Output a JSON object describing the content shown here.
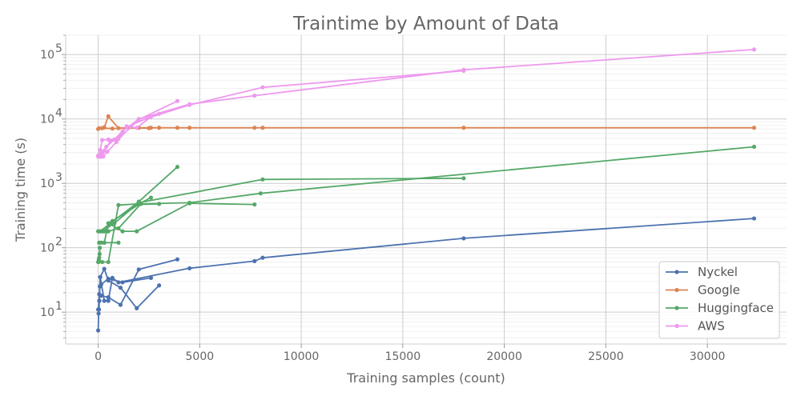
{
  "chart_data": {
    "type": "line",
    "title": "Traintime by Amount of Data",
    "xlabel": "Training samples (count)",
    "ylabel": "Training time (s)",
    "xlim": [
      -1600,
      33900
    ],
    "ylim": [
      3.2,
      200000
    ],
    "yscale": "log",
    "x_ticks": [
      0,
      5000,
      10000,
      15000,
      20000,
      25000,
      30000
    ],
    "x_tick_labels": [
      "0",
      "5000",
      "10000",
      "15000",
      "20000",
      "25000",
      "30000"
    ],
    "y_ticks": [
      10,
      100,
      1000,
      10000,
      100000
    ],
    "y_tick_labels": [
      "10",
      "10",
      "10",
      "10",
      "10"
    ],
    "y_tick_exponents": [
      "1",
      "2",
      "3",
      "4",
      "5"
    ],
    "grid": true,
    "legend_position": "bottom-right",
    "series": [
      {
        "name": "Nyckel",
        "color": "#4c72b0",
        "segments": [
          [
            [
              0,
              5.2
            ],
            [
              20,
              9.5
            ],
            [
              40,
              11
            ],
            [
              60,
              15
            ],
            [
              80,
              25
            ],
            [
              150,
              27
            ],
            [
              500,
              33
            ],
            [
              1200,
              29
            ],
            [
              2600,
              34
            ]
          ],
          [
            [
              0,
              11
            ],
            [
              50,
              15
            ],
            [
              100,
              35
            ],
            [
              300,
              47
            ],
            [
              500,
              31
            ],
            [
              1100,
              24
            ],
            [
              1900,
              11.5
            ],
            [
              3000,
              26
            ]
          ],
          [
            [
              50,
              19
            ],
            [
              150,
              18
            ],
            [
              500,
              17
            ],
            [
              1100,
              13
            ],
            [
              2000,
              46
            ],
            [
              3900,
              66
            ]
          ],
          [
            [
              100,
              35
            ],
            [
              300,
              15
            ],
            [
              500,
              15
            ],
            [
              700,
              34
            ],
            [
              1000,
              29
            ],
            [
              4500,
              48
            ],
            [
              7700,
              62
            ],
            [
              8100,
              70
            ],
            [
              18000,
              140
            ],
            [
              32300,
              285
            ]
          ]
        ]
      },
      {
        "name": "Google",
        "color": "#dd8452",
        "segments": [
          [
            [
              50,
              7200
            ],
            [
              300,
              7400
            ],
            [
              500,
              11000
            ],
            [
              1000,
              7200
            ],
            [
              2000,
              7300
            ],
            [
              2600,
              7300
            ],
            [
              3000,
              7300
            ],
            [
              3900,
              7300
            ],
            [
              4500,
              7300
            ],
            [
              7700,
              7300
            ],
            [
              8100,
              7300
            ],
            [
              18000,
              7300
            ],
            [
              32300,
              7300
            ]
          ],
          [
            [
              0,
              7000
            ],
            [
              200,
              7200
            ],
            [
              700,
              7100
            ],
            [
              1500,
              7300
            ],
            [
              2500,
              7200
            ]
          ]
        ]
      },
      {
        "name": "Huggingface",
        "color": "#55a868",
        "segments": [
          [
            [
              20,
              60
            ],
            [
              30,
              65
            ],
            [
              50,
              70
            ],
            [
              70,
              80
            ],
            [
              80,
              100
            ]
          ],
          [
            [
              0,
              180
            ],
            [
              300,
              180
            ],
            [
              700,
              260
            ],
            [
              2000,
              470
            ],
            [
              3000,
              480
            ]
          ],
          [
            [
              50,
              120
            ],
            [
              150,
              120
            ],
            [
              300,
              120
            ],
            [
              1000,
              120
            ]
          ],
          [
            [
              0,
              60
            ],
            [
              200,
              60
            ],
            [
              500,
              60
            ],
            [
              1000,
              460
            ],
            [
              2000,
              480
            ],
            [
              2600,
              600
            ]
          ],
          [
            [
              50,
              120
            ],
            [
              300,
              120
            ],
            [
              500,
              240
            ],
            [
              1200,
              180
            ],
            [
              1900,
              180
            ],
            [
              4500,
              490
            ],
            [
              7700,
              470
            ]
          ],
          [
            [
              100,
              180
            ],
            [
              600,
              240
            ],
            [
              2000,
              520
            ],
            [
              3900,
              1800
            ]
          ],
          [
            [
              200,
              180
            ],
            [
              800,
              240
            ],
            [
              2000,
              500
            ],
            [
              8100,
              1150
            ],
            [
              18000,
              1200
            ]
          ],
          [
            [
              500,
              180
            ],
            [
              1000,
              200
            ],
            [
              2100,
              480
            ],
            [
              4500,
              500
            ],
            [
              8000,
              700
            ],
            [
              32300,
              3700
            ]
          ]
        ]
      },
      {
        "name": "AWS",
        "color": "#ee99ee",
        "segments": [
          [
            [
              0,
              2700
            ],
            [
              50,
              2800
            ],
            [
              100,
              3300
            ],
            [
              200,
              4700
            ],
            [
              500,
              4800
            ],
            [
              1000,
              4900
            ],
            [
              2000,
              9800
            ],
            [
              3900,
              19000
            ]
          ],
          [
            [
              0,
              2600
            ],
            [
              100,
              2600
            ],
            [
              200,
              2700
            ],
            [
              300,
              3200
            ],
            [
              600,
              4500
            ],
            [
              1100,
              5500
            ],
            [
              1400,
              7700
            ],
            [
              1900,
              7300
            ],
            [
              2600,
              10800
            ],
            [
              3000,
              12000
            ]
          ],
          [
            [
              50,
              2700
            ],
            [
              100,
              2600
            ],
            [
              250,
              2600
            ],
            [
              450,
              3100
            ],
            [
              900,
              4400
            ],
            [
              1200,
              6400
            ],
            [
              2000,
              10000
            ],
            [
              4500,
              17000
            ],
            [
              7700,
              23000
            ],
            [
              18000,
              58000
            ],
            [
              32300,
              120000
            ]
          ],
          [
            [
              100,
              2700
            ],
            [
              200,
              3000
            ],
            [
              400,
              3700
            ],
            [
              800,
              4800
            ],
            [
              1400,
              7500
            ],
            [
              2400,
              10200
            ],
            [
              4500,
              16500
            ],
            [
              8100,
              31000
            ],
            [
              18000,
              56000
            ]
          ]
        ]
      }
    ]
  }
}
